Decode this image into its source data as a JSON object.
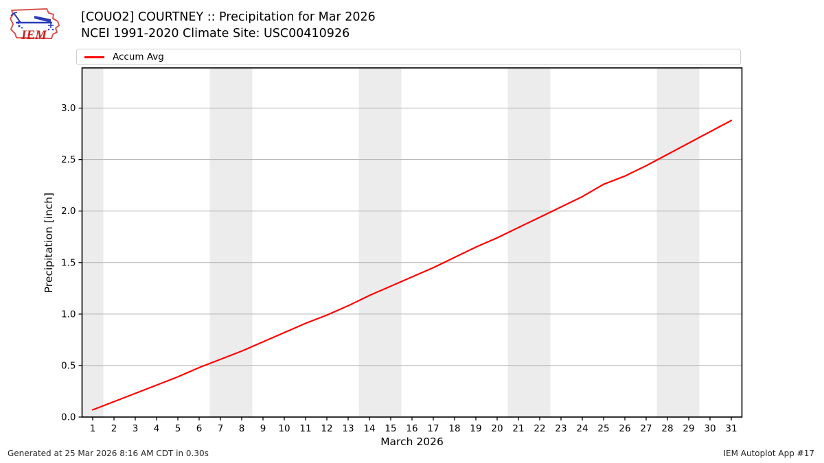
{
  "header": {
    "title_line1": "[COUO2] COURTNEY :: Precipitation for Mar 2026",
    "title_line2": "NCEI 1991-2020 Climate Site: USC00410926",
    "logo_text": "IEM"
  },
  "legend": {
    "items": [
      {
        "label": "Accum Avg",
        "color": "#ff0000"
      }
    ]
  },
  "footer": {
    "left": "Generated at 25 Mar 2026 8:16 AM CDT in 0.30s",
    "right": "IEM Autoplot App #17"
  },
  "chart_data": {
    "type": "line",
    "title": "[COUO2] COURTNEY :: Precipitation for Mar 2026",
    "subtitle": "NCEI 1991-2020 Climate Site: USC00410926",
    "xlabel": "March 2026",
    "ylabel": "Precipitation [inch]",
    "x": [
      1,
      2,
      3,
      4,
      5,
      6,
      7,
      8,
      9,
      10,
      11,
      12,
      13,
      14,
      15,
      16,
      17,
      18,
      19,
      20,
      21,
      22,
      23,
      24,
      25,
      26,
      27,
      28,
      29,
      30,
      31
    ],
    "series": [
      {
        "name": "Accum Avg",
        "color": "#ff0000",
        "values": [
          0.07,
          0.15,
          0.23,
          0.31,
          0.39,
          0.48,
          0.56,
          0.64,
          0.73,
          0.82,
          0.91,
          0.99,
          1.08,
          1.18,
          1.27,
          1.36,
          1.45,
          1.55,
          1.65,
          1.74,
          1.84,
          1.94,
          2.04,
          2.14,
          2.26,
          2.34,
          2.44,
          2.55,
          2.66,
          2.77,
          2.88
        ]
      }
    ],
    "xlim": [
      0.5,
      31.5
    ],
    "ylim": [
      0,
      3.39
    ],
    "yticks": [
      0.0,
      0.5,
      1.0,
      1.5,
      2.0,
      2.5,
      3.0
    ],
    "grid": "horizontal",
    "legend_position": "top",
    "weekend_bands": [
      [
        0.5,
        1.5
      ],
      [
        6.5,
        8.5
      ],
      [
        13.5,
        15.5
      ],
      [
        20.5,
        22.5
      ],
      [
        27.5,
        29.5
      ]
    ],
    "band_color": "#ececec",
    "grid_color": "#b0b0b0",
    "line_width": 2.2
  }
}
